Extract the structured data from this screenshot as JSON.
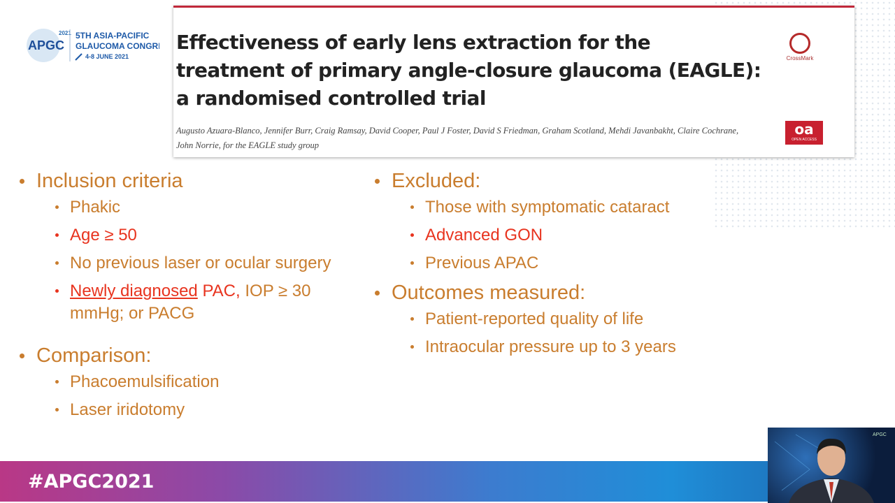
{
  "logo": {
    "year": "2021",
    "name": "APGC",
    "line1": "5TH ASIA-PACIFIC",
    "line2": "GLAUCOMA CONGRESS",
    "dates": "4-8 JUNE 2021"
  },
  "paper": {
    "title": "Effectiveness of early lens extraction for the treatment of primary angle-closure glaucoma (EAGLE): a randomised controlled trial",
    "authors": "Augusto Azuara-Blanco, Jennifer Burr, Craig Ramsay, David Cooper, Paul J Foster, David S Friedman, Graham Scotland, Mehdi Javanbakht, Claire Cochrane, John Norrie, for the EAGLE study group",
    "crossmark": "CrossMark",
    "oa": "oa",
    "oa_caption": "OPEN ACCESS"
  },
  "left": [
    {
      "heading": "Inclusion criteria",
      "items": [
        [
          {
            "text": "Phakic"
          }
        ],
        [
          {
            "text": "Age ≥ 50"
          }
        ],
        [
          {
            "text": "No previous laser or ocular surgery"
          }
        ],
        [
          {
            "text": "Newly diagnosed"
          },
          {
            "text": " PAC,"
          },
          {
            "text": " IOP ≥ 30 mmHg; or PACG"
          }
        ]
      ]
    },
    {
      "heading": "Comparison:",
      "items": [
        [
          {
            "text": "Phacoemulsification"
          }
        ],
        [
          {
            "text": "Laser iridotomy"
          }
        ]
      ]
    }
  ],
  "right": [
    {
      "heading": "Excluded:",
      "items": [
        [
          {
            "text": "Those with symptomatic cataract"
          }
        ],
        [
          {
            "text": "Advanced GON"
          }
        ],
        [
          {
            "text": "Previous APAC"
          }
        ]
      ]
    },
    {
      "heading": "Outcomes measured:",
      "items": [
        [
          {
            "text": "Patient-reported quality of life"
          }
        ],
        [
          {
            "text": "Intraocular pressure up to 3 years"
          }
        ]
      ]
    }
  ],
  "footer": {
    "hashtag": "#APGC2021"
  },
  "video": {
    "watermark": "APGC"
  }
}
